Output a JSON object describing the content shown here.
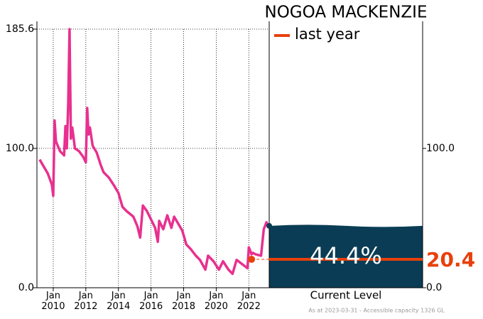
{
  "chart_data": {
    "type": "line",
    "title": "NOGOA MACKENZIE",
    "legend_label": "last year",
    "current_label": "Current Level",
    "footnote": "As at 2023-03-31 - Accessible capacity 1326 GL",
    "series": [
      {
        "color": "#e8308f",
        "x": [
          "2009-03",
          "2009-06",
          "2009-09",
          "2009-12",
          "2010-01",
          "2010-02",
          "2010-03",
          "2010-06",
          "2010-09",
          "2010-10",
          "2010-11",
          "2010-12",
          "2011-01",
          "2011-02",
          "2011-03",
          "2011-05",
          "2011-08",
          "2011-11",
          "2012-01",
          "2012-02",
          "2012-03",
          "2012-04",
          "2012-06",
          "2012-09",
          "2012-12",
          "2013-02",
          "2013-06",
          "2013-10",
          "2014-01",
          "2014-04",
          "2014-07",
          "2014-12",
          "2015-03",
          "2015-05",
          "2015-07",
          "2015-10",
          "2016-01",
          "2016-04",
          "2016-06",
          "2016-07",
          "2016-10",
          "2017-01",
          "2017-04",
          "2017-06",
          "2017-09",
          "2017-12",
          "2018-03",
          "2018-06",
          "2018-10",
          "2019-01",
          "2019-05",
          "2019-07",
          "2019-11",
          "2020-03",
          "2020-06",
          "2020-10",
          "2021-01",
          "2021-04",
          "2021-08",
          "2021-12",
          "2022-01",
          "2022-03",
          "2022-04",
          "2022-06",
          "2022-10",
          "2022-12",
          "2023-02",
          "2023-03"
        ],
        "values": [
          92,
          87,
          82,
          74,
          66,
          120,
          105,
          98,
          95,
          116,
          100,
          131,
          185.6,
          107,
          115,
          100,
          98,
          94,
          90,
          129,
          110,
          115,
          102,
          97,
          88,
          83,
          79,
          73,
          68,
          58,
          55,
          51,
          44,
          36,
          59,
          55,
          49,
          43,
          33,
          48,
          42,
          52,
          43,
          51,
          46,
          41,
          31,
          28,
          23,
          20,
          13,
          23,
          19,
          13,
          19,
          13,
          10,
          20,
          17,
          14,
          29,
          24,
          25,
          24,
          23,
          42,
          47,
          44.4
        ]
      }
    ],
    "current": {
      "value": 44.4,
      "value_label": "44.4%",
      "color": "#0a3d55"
    },
    "last_year": {
      "value": 20.4,
      "value_label": "20.4",
      "color": "#e8400c"
    },
    "ylim": [
      0,
      185.6
    ],
    "yticks": [
      {
        "value": 0,
        "label": "0.0"
      },
      {
        "value": 100,
        "label": "100.0"
      },
      185.6
    ],
    "y2ticks": [
      {
        "value": 0,
        "label": "0.0"
      },
      {
        "value": 100,
        "label": "100.0"
      }
    ],
    "xlim": [
      "2009-01",
      "2023-04"
    ],
    "xticks": [
      {
        "value": "2010-01",
        "label": "Jan\n2010"
      },
      {
        "value": "2012-01",
        "label": "Jan\n2012"
      },
      {
        "value": "2014-01",
        "label": "Jan\n2014"
      },
      {
        "value": "2016-01",
        "label": "Jan\n2016"
      },
      {
        "value": "2018-01",
        "label": "Jan\n2018"
      },
      {
        "value": "2020-01",
        "label": "Jan\n2020"
      },
      {
        "value": "2022-01",
        "label": "Jan\n2022"
      }
    ],
    "grid": true
  }
}
